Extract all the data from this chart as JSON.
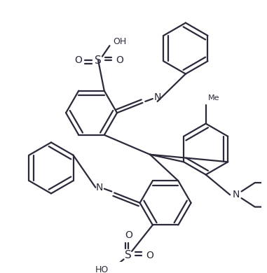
{
  "background_color": "#ffffff",
  "line_color": "#2a2a3a",
  "line_width": 1.6,
  "figsize": [
    3.81,
    3.9
  ],
  "dpi": 100,
  "xlim": [
    0,
    381
  ],
  "ylim": [
    0,
    390
  ]
}
